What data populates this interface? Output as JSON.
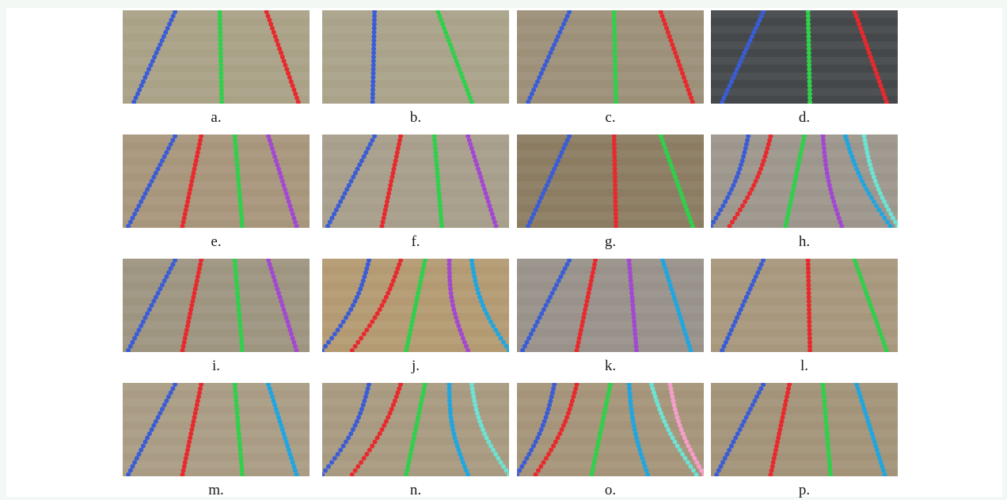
{
  "figure": {
    "panels": [
      {
        "label": "a.",
        "soil": "#a9a287",
        "lines": [
          "blue",
          "green",
          "red"
        ]
      },
      {
        "label": "b.",
        "soil": "#aaa38a",
        "lines": [
          "blue",
          "green"
        ]
      },
      {
        "label": "c.",
        "soil": "#9c9079",
        "lines": [
          "blue",
          "green",
          "red"
        ]
      },
      {
        "label": "d.",
        "soil": "#44484a",
        "lines": [
          "blue",
          "green",
          "red"
        ]
      },
      {
        "label": "e.",
        "soil": "#a8967c",
        "lines": [
          "blue",
          "red",
          "green",
          "purple"
        ]
      },
      {
        "label": "f.",
        "soil": "#a79f8b",
        "lines": [
          "blue",
          "red",
          "green",
          "purple"
        ]
      },
      {
        "label": "g.",
        "soil": "#8c7c62",
        "lines": [
          "blue",
          "red",
          "green"
        ]
      },
      {
        "label": "h.",
        "soil": "#9d968c",
        "lines": [
          "blue",
          "red",
          "green",
          "purple",
          "cyan",
          "aqua"
        ]
      },
      {
        "label": "i.",
        "soil": "#9e9580",
        "lines": [
          "blue",
          "red",
          "green",
          "purple"
        ]
      },
      {
        "label": "j.",
        "soil": "#b39a72",
        "lines": [
          "blue",
          "red",
          "green",
          "purple",
          "cyan"
        ]
      },
      {
        "label": "k.",
        "soil": "#98928a",
        "lines": [
          "blue",
          "red",
          "purple",
          "cyan"
        ]
      },
      {
        "label": "l.",
        "soil": "#a7977d",
        "lines": [
          "blue",
          "red",
          "green"
        ]
      },
      {
        "label": "m.",
        "soil": "#aa9c84",
        "lines": [
          "blue",
          "red",
          "green",
          "cyan"
        ]
      },
      {
        "label": "n.",
        "soil": "#a89a80",
        "lines": [
          "blue",
          "red",
          "green",
          "cyan",
          "aqua"
        ]
      },
      {
        "label": "o.",
        "soil": "#a59479",
        "lines": [
          "blue",
          "red",
          "green",
          "cyan",
          "aqua",
          "pink"
        ]
      },
      {
        "label": "p.",
        "soil": "#a39479",
        "lines": [
          "blue",
          "red",
          "green",
          "cyan"
        ]
      }
    ]
  },
  "colors": {
    "blue": "#3a5cd6",
    "green": "#2fd04a",
    "red": "#e8292d",
    "purple": "#a348d1",
    "cyan": "#1fa6e0",
    "aqua": "#6de3d3",
    "pink": "#f49ec8"
  }
}
